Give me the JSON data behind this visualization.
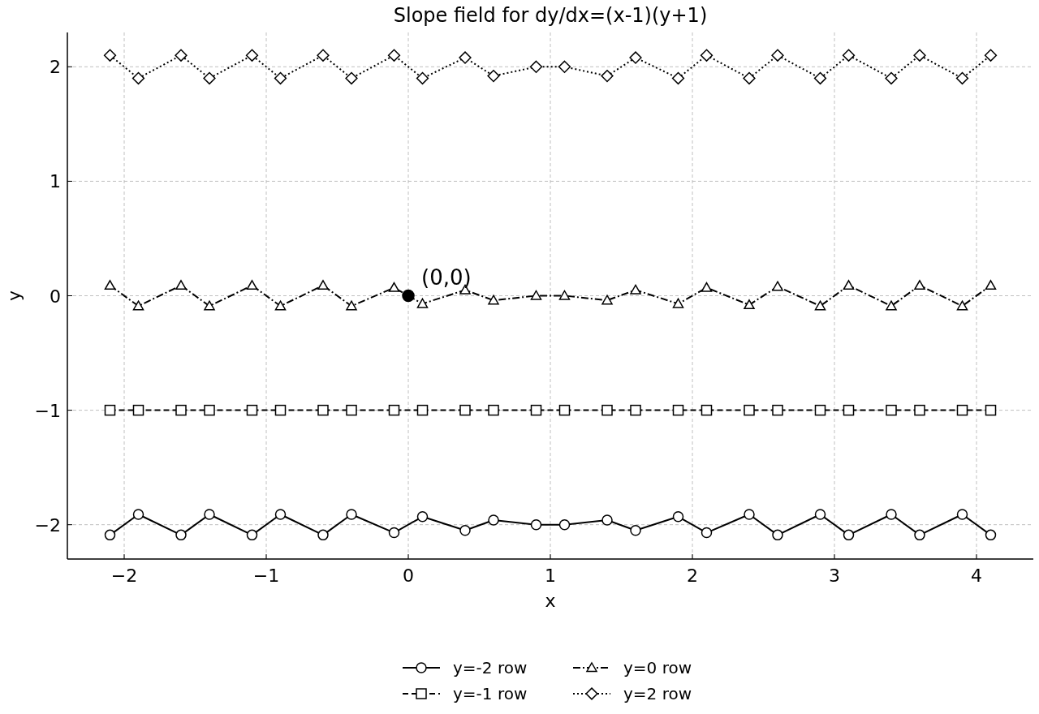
{
  "chart_data": {
    "type": "line",
    "title": "Slope field for dy/dx=(x-1)(y+1)",
    "xlabel": "x",
    "ylabel": "y",
    "xlim": [
      -2.4,
      4.4
    ],
    "ylim": [
      -2.3,
      2.3
    ],
    "xticks": [
      {
        "value": -2,
        "label": "−2"
      },
      {
        "value": -1,
        "label": "−1"
      },
      0,
      1,
      2,
      3,
      4
    ],
    "yticks": [
      {
        "value": -2,
        "label": "−2"
      },
      {
        "value": -1,
        "label": "−1"
      },
      0,
      1,
      2
    ],
    "grid": true,
    "legend": "bottom",
    "x": [
      -2.1,
      -1.9,
      -1.6,
      -1.4,
      -1.1,
      -0.9,
      -0.6,
      -0.4,
      -0.1,
      0.1,
      0.4,
      0.6,
      0.9,
      1.1,
      1.4,
      1.6,
      1.9,
      2.1,
      2.4,
      2.6,
      2.9,
      3.1,
      3.4,
      3.6,
      3.9,
      4.1
    ],
    "series": [
      {
        "name": "y=-2 row",
        "color": "#000000",
        "marker": "circle",
        "line_style": "solid",
        "values": [
          -2.09,
          -1.91,
          -2.09,
          -1.91,
          -2.09,
          -1.91,
          -2.09,
          -1.91,
          -2.07,
          -1.93,
          -2.05,
          -1.96,
          -2.0,
          -2.0,
          -1.96,
          -2.05,
          -1.93,
          -2.07,
          -1.91,
          -2.09,
          -1.91,
          -2.09,
          -1.91,
          -2.09,
          -1.91,
          -2.09
        ]
      },
      {
        "name": "y=-1 row",
        "color": "#000000",
        "marker": "square",
        "line_style": "dashed",
        "values": [
          -1,
          -1,
          -1,
          -1,
          -1,
          -1,
          -1,
          -1,
          -1,
          -1,
          -1,
          -1,
          -1,
          -1,
          -1,
          -1,
          -1,
          -1,
          -1,
          -1,
          -1,
          -1,
          -1,
          -1,
          -1,
          -1
        ]
      },
      {
        "name": "y=0 row",
        "color": "#000000",
        "marker": "triangle",
        "line_style": "dashdot",
        "values": [
          0.09,
          -0.09,
          0.09,
          -0.09,
          0.09,
          -0.09,
          0.09,
          -0.09,
          0.07,
          -0.07,
          0.05,
          -0.04,
          0.0,
          0.0,
          -0.04,
          0.05,
          -0.07,
          0.07,
          -0.08,
          0.08,
          -0.09,
          0.09,
          -0.09,
          0.09,
          -0.09,
          0.09
        ]
      },
      {
        "name": "y=2 row",
        "color": "#000000",
        "marker": "diamond",
        "line_style": "dotted",
        "values": [
          2.1,
          1.9,
          2.1,
          1.9,
          2.1,
          1.9,
          2.1,
          1.9,
          2.1,
          1.9,
          2.08,
          1.92,
          2.0,
          2.0,
          1.92,
          2.08,
          1.9,
          2.1,
          1.9,
          2.1,
          1.9,
          2.1,
          1.9,
          2.1,
          1.9,
          2.1
        ]
      },
      {
        "type": "scatter",
        "color": "#000000",
        "marker": "circle",
        "x": [
          0
        ],
        "values": [
          0
        ]
      }
    ],
    "annotations": [
      {
        "text": "(0,0)",
        "x": 0,
        "y": 0
      }
    ]
  }
}
